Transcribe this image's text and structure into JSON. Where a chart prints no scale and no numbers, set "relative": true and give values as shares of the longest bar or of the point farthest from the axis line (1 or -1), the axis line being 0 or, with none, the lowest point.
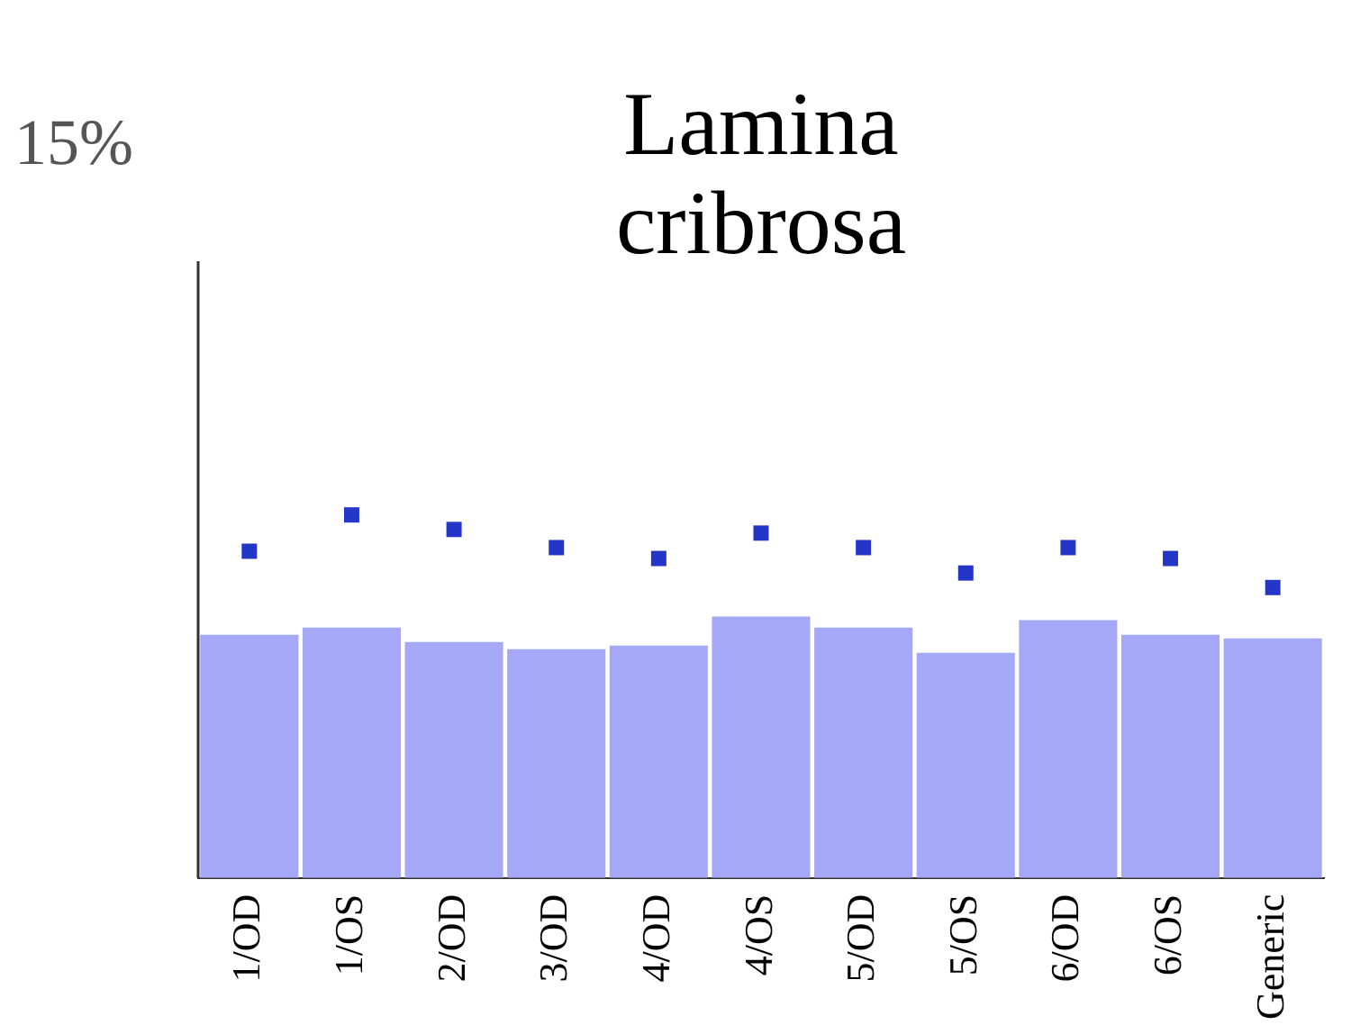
{
  "chart_data": {
    "type": "bar",
    "title": [
      "Lamina",
      "cribrosa"
    ],
    "relative": true,
    "categories": [
      "1/OD",
      "1/OS",
      "2/OD",
      "3/OD",
      "4/OD",
      "4/OS",
      "5/OD",
      "5/OS",
      "6/OD",
      "6/OS",
      "Generic"
    ],
    "series": [
      {
        "color": "#a4a8f6",
        "values": [
          0.67,
          0.69,
          0.65,
          0.63,
          0.64,
          0.72,
          0.69,
          0.62,
          0.71,
          0.67,
          0.66
        ]
      },
      {
        "type": "scatter",
        "marker": "square",
        "color": "#2436c8",
        "values": [
          0.9,
          1,
          0.96,
          0.91,
          0.88,
          0.95,
          0.91,
          0.84,
          0.91,
          0.88,
          0.8
        ]
      }
    ],
    "annotations": [
      "15%"
    ],
    "legend": false,
    "grid": false
  }
}
